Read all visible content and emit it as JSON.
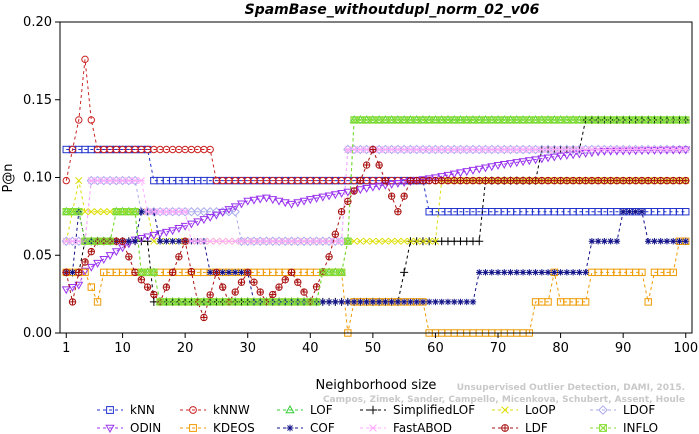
{
  "chart_data": {
    "type": "line",
    "title": "SpamBase_withoutdupl_norm_02_v06",
    "xlabel": "Neighborhood size",
    "ylabel": "P@n",
    "xlim": [
      0,
      101
    ],
    "ylim": [
      0,
      0.2
    ],
    "xticks": [
      1,
      10,
      20,
      30,
      40,
      50,
      60,
      70,
      80,
      90,
      100
    ],
    "yticks": [
      0.0,
      0.05,
      0.1,
      0.15,
      0.2
    ],
    "ytick_labels": [
      "0.00",
      "0.05",
      "0.10",
      "0.15",
      "0.20"
    ],
    "grid": false,
    "legend_position": "bottom",
    "watermark": [
      "Unsupervised Outlier Detection, DAMI, 2015.",
      "Campos, Zimek, Sander, Campello, Micenkova, Schubert, Assent, Houle"
    ],
    "series": [
      {
        "name": "kNN",
        "color": "#2233cc",
        "marker": "square",
        "knots": [
          [
            1,
            0.118
          ],
          [
            14,
            0.118
          ],
          [
            15,
            0.098
          ],
          [
            58,
            0.098
          ],
          [
            59,
            0.078
          ],
          [
            100,
            0.078
          ]
        ]
      },
      {
        "name": "kNNW",
        "color": "#cc2222",
        "marker": "circle",
        "knots": [
          [
            1,
            0.098
          ],
          [
            2,
            0.118
          ],
          [
            3,
            0.137
          ],
          [
            4,
            0.176
          ],
          [
            5,
            0.137
          ],
          [
            6,
            0.118
          ],
          [
            24,
            0.118
          ],
          [
            25,
            0.098
          ],
          [
            100,
            0.098
          ]
        ]
      },
      {
        "name": "LOF",
        "color": "#33cc33",
        "marker": "triangle-up",
        "knots": [
          [
            1,
            0.078
          ],
          [
            3,
            0.078
          ],
          [
            4,
            0.059
          ],
          [
            8,
            0.059
          ],
          [
            9,
            0.078
          ],
          [
            12,
            0.078
          ],
          [
            13,
            0.039
          ],
          [
            15,
            0.039
          ],
          [
            16,
            0.02
          ],
          [
            41,
            0.02
          ],
          [
            42,
            0.039
          ],
          [
            45,
            0.039
          ],
          [
            46,
            0.059
          ],
          [
            47,
            0.137
          ],
          [
            100,
            0.137
          ]
        ]
      },
      {
        "name": "SimplifiedLOF",
        "color": "#000000",
        "marker": "plus",
        "knots": [
          [
            1,
            0.039
          ],
          [
            3,
            0.039
          ],
          [
            4,
            0.059
          ],
          [
            14,
            0.059
          ],
          [
            15,
            0.02
          ],
          [
            54,
            0.02
          ],
          [
            55,
            0.039
          ],
          [
            56,
            0.059
          ],
          [
            67,
            0.059
          ],
          [
            68,
            0.098
          ],
          [
            76,
            0.098
          ],
          [
            77,
            0.118
          ],
          [
            83,
            0.118
          ],
          [
            84,
            0.137
          ],
          [
            100,
            0.137
          ]
        ]
      },
      {
        "name": "LoOP",
        "color": "#dddd00",
        "marker": "x",
        "knots": [
          [
            1,
            0.059
          ],
          [
            2,
            0.078
          ],
          [
            3,
            0.098
          ],
          [
            4,
            0.078
          ],
          [
            14,
            0.078
          ],
          [
            15,
            0.059
          ],
          [
            60,
            0.059
          ],
          [
            61,
            0.098
          ],
          [
            100,
            0.098
          ]
        ]
      },
      {
        "name": "LDOF",
        "color": "#aaaaee",
        "marker": "diamond",
        "knots": [
          [
            1,
            0.059
          ],
          [
            4,
            0.059
          ],
          [
            5,
            0.098
          ],
          [
            12,
            0.098
          ],
          [
            13,
            0.078
          ],
          [
            28,
            0.078
          ],
          [
            29,
            0.059
          ],
          [
            45,
            0.059
          ],
          [
            46,
            0.118
          ],
          [
            100,
            0.118
          ]
        ]
      },
      {
        "name": "ODIN",
        "color": "#9933ee",
        "marker": "triangle-down",
        "knots": [
          [
            1,
            0.028
          ],
          [
            3,
            0.031
          ],
          [
            4,
            0.04
          ],
          [
            8,
            0.05
          ],
          [
            12,
            0.06
          ],
          [
            18,
            0.066
          ],
          [
            25,
            0.076
          ],
          [
            30,
            0.085
          ],
          [
            33,
            0.087
          ],
          [
            37,
            0.083
          ],
          [
            40,
            0.086
          ],
          [
            45,
            0.09
          ],
          [
            50,
            0.094
          ],
          [
            60,
            0.1
          ],
          [
            70,
            0.108
          ],
          [
            80,
            0.114
          ],
          [
            87,
            0.117
          ],
          [
            100,
            0.118
          ]
        ]
      },
      {
        "name": "KDEOS",
        "color": "#ee9900",
        "marker": "square",
        "knots": [
          [
            1,
            0.039
          ],
          [
            4,
            0.039
          ],
          [
            6,
            0.02
          ],
          [
            7,
            0.039
          ],
          [
            45,
            0.039
          ],
          [
            46,
            0.0
          ],
          [
            47,
            0.02
          ],
          [
            58,
            0.02
          ],
          [
            59,
            0.0
          ],
          [
            75,
            0.0
          ],
          [
            76,
            0.02
          ],
          [
            78,
            0.02
          ],
          [
            79,
            0.039
          ],
          [
            80,
            0.02
          ],
          [
            84,
            0.02
          ],
          [
            85,
            0.039
          ],
          [
            93,
            0.039
          ],
          [
            94,
            0.02
          ],
          [
            95,
            0.039
          ],
          [
            98,
            0.039
          ],
          [
            99,
            0.059
          ],
          [
            100,
            0.059
          ]
        ]
      },
      {
        "name": "COF",
        "color": "#111188",
        "marker": "asterisk",
        "knots": [
          [
            1,
            0.039
          ],
          [
            2,
            0.039
          ],
          [
            3,
            0.078
          ],
          [
            4,
            0.059
          ],
          [
            12,
            0.059
          ],
          [
            13,
            0.078
          ],
          [
            15,
            0.078
          ],
          [
            16,
            0.059
          ],
          [
            23,
            0.059
          ],
          [
            24,
            0.039
          ],
          [
            30,
            0.039
          ],
          [
            31,
            0.02
          ],
          [
            66,
            0.02
          ],
          [
            67,
            0.039
          ],
          [
            84,
            0.039
          ],
          [
            85,
            0.059
          ],
          [
            89,
            0.059
          ],
          [
            90,
            0.078
          ],
          [
            93,
            0.078
          ],
          [
            94,
            0.059
          ],
          [
            100,
            0.059
          ]
        ]
      },
      {
        "name": "FastABOD",
        "color": "#ffaaff",
        "marker": "cross",
        "knots": [
          [
            1,
            0.059
          ],
          [
            4,
            0.059
          ],
          [
            5,
            0.098
          ],
          [
            13,
            0.098
          ],
          [
            14,
            0.078
          ],
          [
            20,
            0.078
          ],
          [
            21,
            0.059
          ],
          [
            45,
            0.059
          ],
          [
            46,
            0.118
          ],
          [
            100,
            0.118
          ]
        ]
      },
      {
        "name": "LDF",
        "color": "#aa1111",
        "marker": "circle-plus",
        "knots": [
          [
            1,
            0.039
          ],
          [
            2,
            0.02
          ],
          [
            3,
            0.039
          ],
          [
            6,
            0.059
          ],
          [
            10,
            0.059
          ],
          [
            12,
            0.039
          ],
          [
            16,
            0.02
          ],
          [
            18,
            0.039
          ],
          [
            20,
            0.059
          ],
          [
            22,
            0.02
          ],
          [
            23,
            0.01
          ],
          [
            25,
            0.039
          ],
          [
            27,
            0.02
          ],
          [
            30,
            0.039
          ],
          [
            33,
            0.02
          ],
          [
            37,
            0.039
          ],
          [
            40,
            0.02
          ],
          [
            43,
            0.049
          ],
          [
            45,
            0.078
          ],
          [
            48,
            0.098
          ],
          [
            50,
            0.118
          ],
          [
            52,
            0.098
          ],
          [
            54,
            0.078
          ],
          [
            56,
            0.098
          ],
          [
            58,
            0.098
          ],
          [
            100,
            0.098
          ]
        ]
      },
      {
        "name": "INFLO",
        "color": "#88dd33",
        "marker": "star-box",
        "knots": [
          [
            1,
            0.078
          ],
          [
            3,
            0.078
          ],
          [
            4,
            0.059
          ],
          [
            8,
            0.059
          ],
          [
            9,
            0.078
          ],
          [
            12,
            0.078
          ],
          [
            13,
            0.039
          ],
          [
            15,
            0.039
          ],
          [
            16,
            0.02
          ],
          [
            41,
            0.02
          ],
          [
            42,
            0.039
          ],
          [
            45,
            0.039
          ],
          [
            46,
            0.059
          ],
          [
            47,
            0.137
          ],
          [
            100,
            0.137
          ]
        ]
      }
    ]
  }
}
